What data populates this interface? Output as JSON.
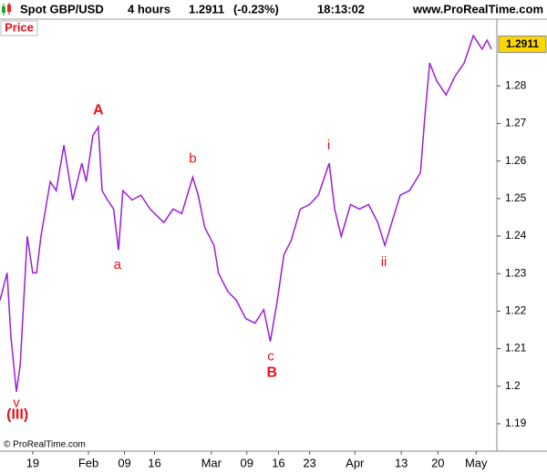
{
  "chart_data": {
    "type": "line",
    "title": "Spot GBP/USD",
    "timeframe": "4 hours",
    "price": "1.2911",
    "change": "(-0.23%)",
    "time": "18:13:02",
    "site": "www.ProRealTime.com",
    "panel_label": "Price",
    "copyright": "© ProRealTime.com",
    "last_value": 1.2911,
    "color": "#9b1fd6",
    "x": [
      0,
      1.3,
      2,
      3,
      3.7,
      5,
      6,
      6.7,
      7.5,
      9.2,
      10.3,
      11.7,
      13.3,
      15,
      15.8,
      17,
      18,
      18.7,
      19.7,
      20.8,
      21.7,
      22.5,
      24.2,
      25.8,
      27.5,
      30,
      31.7,
      33.3,
      35.3,
      36.3,
      37.5,
      39.2,
      40,
      41.7,
      43.3,
      45,
      46.7,
      48.3,
      49.5,
      50.8,
      52,
      53.3,
      55,
      56.7,
      58.3,
      60.3,
      61.3,
      62.5,
      64.2,
      65.8,
      67.5,
      69.2,
      70.5,
      72,
      73.3,
      75,
      77,
      77.8,
      78.7,
      80,
      81.7,
      83.3,
      85,
      86.7,
      88.3,
      89.2,
      90
    ],
    "values": [
      1.2229,
      1.2302,
      1.2131,
      1.1985,
      1.2058,
      1.2399,
      1.2302,
      1.2302,
      1.2399,
      1.2545,
      1.2521,
      1.2642,
      1.2496,
      1.2594,
      1.2545,
      1.2667,
      1.2691,
      1.2521,
      1.2496,
      1.2472,
      1.2363,
      1.2521,
      1.2496,
      1.2509,
      1.2472,
      1.2436,
      1.2472,
      1.246,
      1.2557,
      1.2509,
      1.2423,
      1.2375,
      1.2302,
      1.2253,
      1.2229,
      1.218,
      1.2168,
      1.2204,
      1.2119,
      1.2229,
      1.235,
      1.2387,
      1.2472,
      1.2484,
      1.2509,
      1.2594,
      1.2472,
      1.2399,
      1.2484,
      1.2472,
      1.2484,
      1.2436,
      1.2375,
      1.2448,
      1.2509,
      1.2521,
      1.2569,
      1.2715,
      1.2861,
      1.2813,
      1.2776,
      1.2825,
      1.2861,
      1.2934,
      1.2898,
      1.2922,
      1.2898
    ],
    "xlim": [
      0,
      91
    ],
    "xticks": [
      {
        "value": 6,
        "label": "19"
      },
      {
        "value": 16.2,
        "label": "Feb"
      },
      {
        "value": 22.8,
        "label": "09"
      },
      {
        "value": 28.3,
        "label": "16"
      },
      {
        "value": 38.7,
        "label": "Mar"
      },
      {
        "value": 45.2,
        "label": "09"
      },
      {
        "value": 51,
        "label": "16"
      },
      {
        "value": 56.7,
        "label": "23"
      },
      {
        "value": 65,
        "label": "Apr"
      },
      {
        "value": 73.5,
        "label": "13"
      },
      {
        "value": 80.2,
        "label": "20"
      },
      {
        "value": 87.2,
        "label": "May"
      }
    ],
    "ylim": [
      1.1827,
      1.2978
    ],
    "yticks": [
      1.19,
      1.2,
      1.21,
      1.22,
      1.23,
      1.24,
      1.25,
      1.26,
      1.27,
      1.28
    ],
    "annotations": [
      {
        "text": "v",
        "x": 3,
        "y": 1.1955,
        "bold": false
      },
      {
        "text": "(III)",
        "x": 3.2,
        "y": 1.1923,
        "bold": true
      },
      {
        "text": "A",
        "x": 18,
        "y": 1.2735,
        "bold": true
      },
      {
        "text": "a",
        "x": 21.5,
        "y": 1.2322,
        "bold": false
      },
      {
        "text": "b",
        "x": 35.3,
        "y": 1.2605,
        "bold": false
      },
      {
        "text": "c",
        "x": 49.6,
        "y": 1.2078,
        "bold": false
      },
      {
        "text": "B",
        "x": 49.8,
        "y": 1.2035,
        "bold": true
      },
      {
        "text": "i",
        "x": 60.2,
        "y": 1.264,
        "bold": false
      },
      {
        "text": "ii",
        "x": 70.3,
        "y": 1.233,
        "bold": false
      }
    ]
  }
}
